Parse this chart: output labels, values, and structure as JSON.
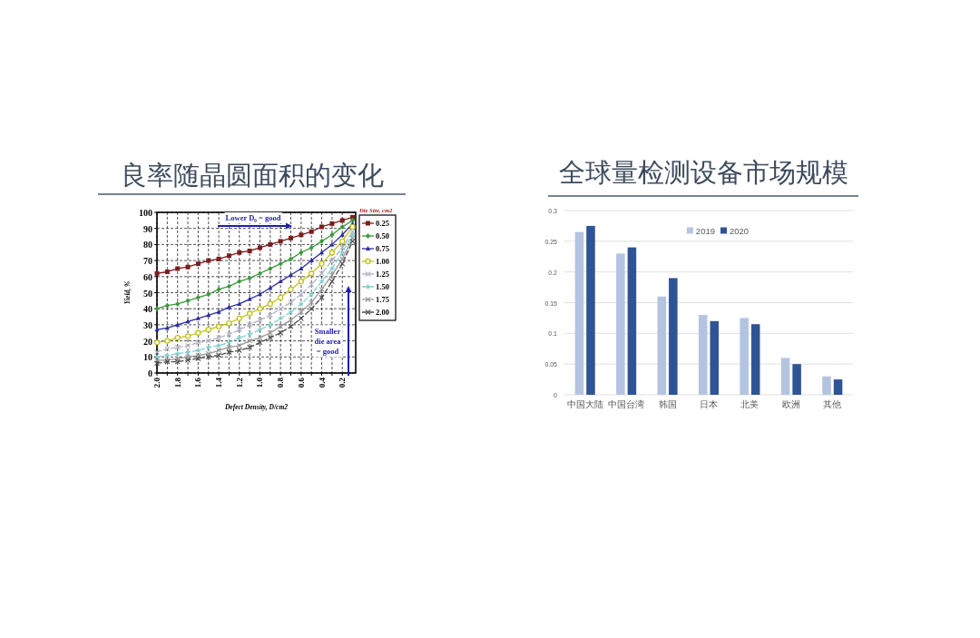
{
  "chart_data": [
    {
      "type": "line",
      "title": "良率随晶圆面积的变化",
      "xlabel": "Defect Density, D/cm2",
      "ylabel": "Yield, %",
      "legend_title": "Die Size, cm2",
      "x": [
        2.0,
        1.9,
        1.8,
        1.7,
        1.6,
        1.5,
        1.4,
        1.3,
        1.2,
        1.1,
        1.0,
        0.9,
        0.8,
        0.7,
        0.6,
        0.5,
        0.4,
        0.3,
        0.2,
        0.1
      ],
      "series": [
        {
          "name": "0.25",
          "color": "#7b1e1e",
          "marker": "square",
          "line_style": "solid",
          "values": [
            62,
            63,
            65,
            66,
            68,
            70,
            71,
            73,
            75,
            76,
            78,
            80,
            82,
            84,
            86,
            88,
            91,
            93,
            95,
            97
          ]
        },
        {
          "name": "0.50",
          "color": "#3c9a3c",
          "marker": "diamond",
          "line_style": "solid",
          "values": [
            40,
            42,
            43,
            45,
            47,
            49,
            52,
            54,
            57,
            59,
            62,
            65,
            68,
            71,
            75,
            78,
            82,
            86,
            91,
            95
          ]
        },
        {
          "name": "0.75",
          "color": "#2c2ca3",
          "marker": "triangle",
          "line_style": "solid",
          "values": [
            27,
            28,
            30,
            32,
            34,
            36,
            38,
            41,
            43,
            46,
            49,
            53,
            57,
            61,
            65,
            70,
            75,
            80,
            86,
            93
          ]
        },
        {
          "name": "1.00",
          "color": "#c2c21a",
          "marker": "circle",
          "line_style": "solid",
          "values": [
            19,
            20,
            22,
            23,
            25,
            27,
            29,
            31,
            34,
            37,
            40,
            43,
            47,
            52,
            57,
            62,
            68,
            75,
            82,
            91
          ]
        },
        {
          "name": "1.25",
          "color": "#b3b3c6",
          "marker": "cross",
          "line_style": "dashed",
          "values": [
            13,
            15,
            16,
            17,
            19,
            20,
            22,
            24,
            27,
            30,
            33,
            36,
            40,
            44,
            49,
            55,
            62,
            70,
            78,
            88
          ]
        },
        {
          "name": "1.50",
          "color": "#86d0d0",
          "marker": "star",
          "line_style": "dashed",
          "values": [
            10,
            11,
            12,
            13,
            14,
            16,
            17,
            19,
            22,
            24,
            27,
            30,
            34,
            38,
            43,
            49,
            57,
            65,
            75,
            86
          ]
        },
        {
          "name": "1.75",
          "color": "#9a9a9a",
          "marker": "cross",
          "line_style": "solid",
          "values": [
            8,
            8,
            9,
            10,
            11,
            12,
            14,
            16,
            17,
            20,
            22,
            25,
            29,
            33,
            38,
            44,
            52,
            61,
            71,
            84
          ]
        },
        {
          "name": "2.00",
          "color": "#4d4d4d",
          "marker": "cross",
          "line_style": "dashed",
          "values": [
            6,
            7,
            7,
            8,
            9,
            10,
            11,
            13,
            14,
            16,
            19,
            22,
            25,
            29,
            34,
            40,
            47,
            57,
            68,
            82
          ]
        }
      ],
      "xlim": [
        2,
        0.07
      ],
      "xticks": [
        {
          "value": 2,
          "label": "2.0"
        },
        {
          "value": 1.9,
          "label": null
        },
        {
          "value": 1.8,
          "label": "1.8"
        },
        {
          "value": 1.7,
          "label": null
        },
        {
          "value": 1.6,
          "label": "1.6"
        },
        {
          "value": 1.5,
          "label": null
        },
        {
          "value": 1.4,
          "label": "1.4"
        },
        {
          "value": 1.3,
          "label": null
        },
        {
          "value": 1.2,
          "label": "1.2"
        },
        {
          "value": 1.1,
          "label": null
        },
        {
          "value": 1,
          "label": "1.0"
        },
        {
          "value": 0.9,
          "label": null
        },
        {
          "value": 0.8,
          "label": "0.8"
        },
        {
          "value": 0.7,
          "label": null
        },
        {
          "value": 0.6,
          "label": "0.6"
        },
        {
          "value": 0.5,
          "label": null
        },
        {
          "value": 0.4,
          "label": "0.4"
        },
        {
          "value": 0.3,
          "label": null
        },
        {
          "value": 0.2,
          "label": "0.2"
        }
      ],
      "ylim": [
        0,
        100
      ],
      "yticks": [
        0,
        10,
        20,
        30,
        40,
        50,
        60,
        70,
        80,
        90,
        100
      ],
      "grid": true,
      "legend": "right",
      "annotations": [
        "Lower D₀ = good",
        "Smaller die area = good"
      ]
    },
    {
      "type": "bar",
      "title": "全球量检测设备市场规模",
      "categories": [
        "中国大陆",
        "中国台湾",
        "韩国",
        "日本",
        "北美",
        "欧洲",
        "其他"
      ],
      "series": [
        {
          "name": "2019",
          "color": "#b4c4e0",
          "values": [
            0.265,
            0.23,
            0.16,
            0.13,
            0.125,
            0.06,
            0.03
          ]
        },
        {
          "name": "2020",
          "color": "#2f5496",
          "values": [
            0.275,
            0.24,
            0.19,
            0.12,
            0.115,
            0.05,
            0.025
          ]
        }
      ],
      "ylim": [
        0,
        0.3
      ],
      "yticks": [
        0,
        0.05,
        0.1,
        0.15,
        0.2,
        0.25,
        0.3
      ],
      "grid": "y",
      "legend": "top"
    }
  ]
}
